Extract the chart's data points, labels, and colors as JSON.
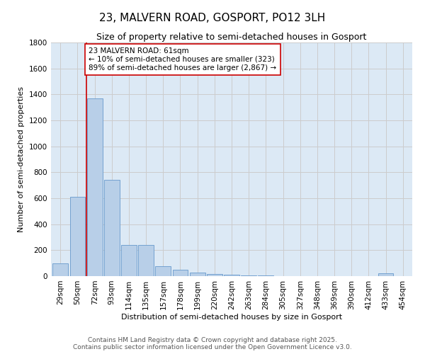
{
  "title": "23, MALVERN ROAD, GOSPORT, PO12 3LH",
  "subtitle": "Size of property relative to semi-detached houses in Gosport",
  "xlabel": "Distribution of semi-detached houses by size in Gosport",
  "ylabel": "Number of semi-detached properties",
  "categories": [
    "29sqm",
    "50sqm",
    "72sqm",
    "93sqm",
    "114sqm",
    "135sqm",
    "157sqm",
    "178sqm",
    "199sqm",
    "220sqm",
    "242sqm",
    "263sqm",
    "284sqm",
    "305sqm",
    "327sqm",
    "348sqm",
    "369sqm",
    "390sqm",
    "412sqm",
    "433sqm",
    "454sqm"
  ],
  "values": [
    100,
    610,
    1370,
    740,
    240,
    240,
    75,
    50,
    30,
    15,
    10,
    5,
    3,
    2,
    1,
    1,
    1,
    1,
    0,
    20,
    2
  ],
  "bar_color": "#b8cfe8",
  "bar_edge_color": "#6699cc",
  "property_line_x": 1.5,
  "annotation_text": "23 MALVERN ROAD: 61sqm\n← 10% of semi-detached houses are smaller (323)\n89% of semi-detached houses are larger (2,867) →",
  "annotation_box_color": "#ffffff",
  "annotation_box_edge_color": "#cc0000",
  "annotation_text_color": "#000000",
  "vline_color": "#cc0000",
  "ylim": [
    0,
    1800
  ],
  "yticks": [
    0,
    200,
    400,
    600,
    800,
    1000,
    1200,
    1400,
    1600,
    1800
  ],
  "grid_color": "#cccccc",
  "bg_color": "#dce9f5",
  "footer_line1": "Contains HM Land Registry data © Crown copyright and database right 2025.",
  "footer_line2": "Contains public sector information licensed under the Open Government Licence v3.0.",
  "title_fontsize": 11,
  "subtitle_fontsize": 9,
  "axis_label_fontsize": 8,
  "tick_fontsize": 7.5,
  "annotation_fontsize": 7.5,
  "footer_fontsize": 6.5
}
